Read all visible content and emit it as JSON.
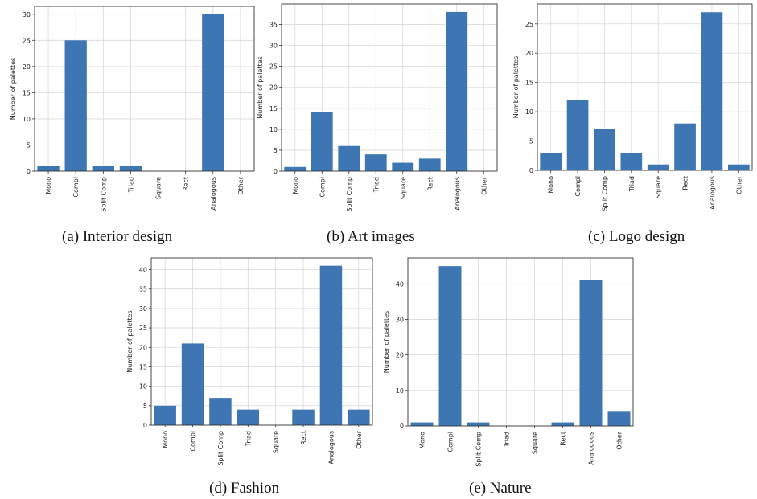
{
  "chart_data": [
    {
      "type": "bar",
      "categories": [
        "Mono",
        "Compl",
        "Split Comp",
        "Triad",
        "Square",
        "Rect",
        "Analogous",
        "Other"
      ],
      "values": [
        1,
        25,
        1,
        1,
        0,
        0,
        30,
        0
      ],
      "ylabel": "Number of palettes",
      "ylim": [
        0,
        31.5
      ],
      "yticks": [
        0,
        5,
        10,
        15,
        20,
        25,
        30
      ],
      "grid": true,
      "bar_color": "#3d76b3",
      "caption": "(a) Interior design"
    },
    {
      "type": "bar",
      "categories": [
        "Mono",
        "Compl",
        "Split Comp",
        "Triad",
        "Square",
        "Rect",
        "Analogous",
        "Other"
      ],
      "values": [
        1,
        14,
        6,
        4,
        2,
        3,
        38,
        0
      ],
      "ylabel": "Number of palettes",
      "ylim": [
        0,
        39.9
      ],
      "yticks": [
        0,
        5,
        10,
        15,
        20,
        25,
        30,
        35
      ],
      "grid": true,
      "bar_color": "#3d76b3",
      "caption": "(b) Art images"
    },
    {
      "type": "bar",
      "categories": [
        "Mono",
        "Compl",
        "Split Comp",
        "Triad",
        "Square",
        "Rect",
        "Analogous",
        "Other"
      ],
      "values": [
        3,
        12,
        7,
        3,
        1,
        8,
        27,
        1
      ],
      "ylabel": "Number of palettes",
      "ylim": [
        0,
        28.4
      ],
      "yticks": [
        0,
        5,
        10,
        15,
        20,
        25
      ],
      "grid": true,
      "bar_color": "#3d76b3",
      "caption": "(c) Logo design"
    },
    {
      "type": "bar",
      "categories": [
        "Mono",
        "Compl",
        "Split Comp",
        "Triad",
        "Square",
        "Rect",
        "Analogous",
        "Other"
      ],
      "values": [
        5,
        21,
        7,
        4,
        0,
        4,
        41,
        4
      ],
      "ylabel": "Number of palettes",
      "ylim": [
        0,
        43
      ],
      "yticks": [
        0,
        5,
        10,
        15,
        20,
        25,
        30,
        35,
        40
      ],
      "grid": true,
      "bar_color": "#3d76b3",
      "caption": "(d) Fashion"
    },
    {
      "type": "bar",
      "categories": [
        "Mono",
        "Compl",
        "Split Comp",
        "Triad",
        "Square",
        "Rect",
        "Analogous",
        "Other"
      ],
      "values": [
        1,
        45,
        1,
        0,
        0,
        1,
        41,
        4
      ],
      "ylabel": "Number of palettes",
      "ylim": [
        0,
        47.3
      ],
      "yticks": [
        0,
        10,
        20,
        30,
        40
      ],
      "grid": true,
      "bar_color": "#3d76b3",
      "caption": "(e) Nature"
    }
  ]
}
